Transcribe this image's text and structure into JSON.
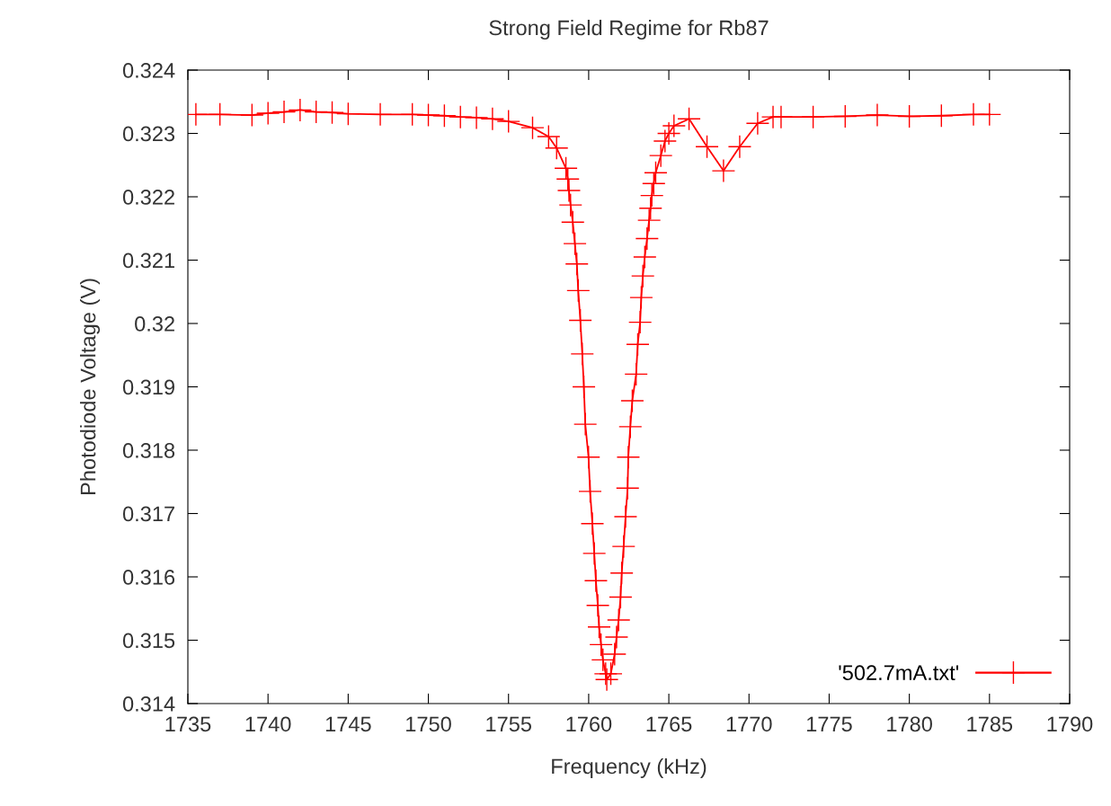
{
  "chart_data": {
    "type": "line",
    "title": "Strong Field Regime for Rb87",
    "xlabel": "Frequency (kHz)",
    "ylabel": "Photodiode Voltage (V)",
    "xlim": [
      1735,
      1790
    ],
    "xticks": [
      1735,
      1740,
      1745,
      1750,
      1755,
      1760,
      1765,
      1770,
      1775,
      1780,
      1785,
      1790
    ],
    "ylim": [
      0.314,
      0.324
    ],
    "yticks": [
      0.314,
      0.315,
      0.316,
      0.317,
      0.318,
      0.319,
      0.32,
      0.321,
      0.322,
      0.323,
      0.324
    ],
    "marker": "cross",
    "line_style": "solid",
    "grid": false,
    "legend": "bottom right",
    "series": [
      {
        "name": "'502.7mA.txt'",
        "color": "#ff0000",
        "x": [
          1735.5,
          1737,
          1739,
          1740,
          1741,
          1742,
          1743,
          1744,
          1745,
          1747,
          1749,
          1750,
          1751,
          1752,
          1753,
          1754,
          1755,
          1756.5,
          1757.5,
          1758,
          1758.58,
          1758.7,
          1758.77,
          1758.87,
          1759.01,
          1759.14,
          1759.26,
          1759.35,
          1759.48,
          1759.6,
          1759.7,
          1759.79,
          1759.99,
          1760.09,
          1760.23,
          1760.35,
          1760.45,
          1760.57,
          1760.65,
          1760.77,
          1760.89,
          1761.06,
          1761.13,
          1761.38,
          1761.62,
          1761.74,
          1761.87,
          1761.99,
          1762.06,
          1762.18,
          1762.3,
          1762.43,
          1762.47,
          1762.6,
          1762.72,
          1762.96,
          1763.06,
          1763.21,
          1763.28,
          1763.38,
          1763.5,
          1763.64,
          1763.77,
          1763.86,
          1763.94,
          1764.06,
          1764.18,
          1764.5,
          1764.76,
          1765,
          1765.32,
          1766.26,
          1767.38,
          1768.41,
          1769.42,
          1770.54,
          1771.5,
          1772,
          1774,
          1776,
          1778,
          1780,
          1782,
          1784,
          1785
        ],
        "values": [
          0.3233,
          0.3233,
          0.32329,
          0.32332,
          0.32334,
          0.32337,
          0.32334,
          0.32333,
          0.32331,
          0.3233,
          0.3233,
          0.32329,
          0.32328,
          0.32326,
          0.32325,
          0.32323,
          0.32319,
          0.32309,
          0.32295,
          0.32277,
          0.32245,
          0.32228,
          0.3221,
          0.32187,
          0.3216,
          0.32126,
          0.32094,
          0.32052,
          0.32005,
          0.31952,
          0.319,
          0.31841,
          0.31789,
          0.31735,
          0.31684,
          0.31637,
          0.31594,
          0.31555,
          0.31521,
          0.31493,
          0.31469,
          0.31447,
          0.31438,
          0.31447,
          0.31478,
          0.31505,
          0.31532,
          0.31568,
          0.31606,
          0.31648,
          0.31695,
          0.3174,
          0.31789,
          0.31837,
          0.31878,
          0.3192,
          0.31967,
          0.32002,
          0.32041,
          0.32075,
          0.32105,
          0.32134,
          0.32163,
          0.32182,
          0.32202,
          0.32221,
          0.32238,
          0.32265,
          0.32288,
          0.323,
          0.32312,
          0.32323,
          0.32279,
          0.32241,
          0.32279,
          0.32316,
          0.32326,
          0.32326,
          0.32326,
          0.32327,
          0.32329,
          0.32327,
          0.32328,
          0.3233,
          0.3233
        ]
      }
    ]
  }
}
